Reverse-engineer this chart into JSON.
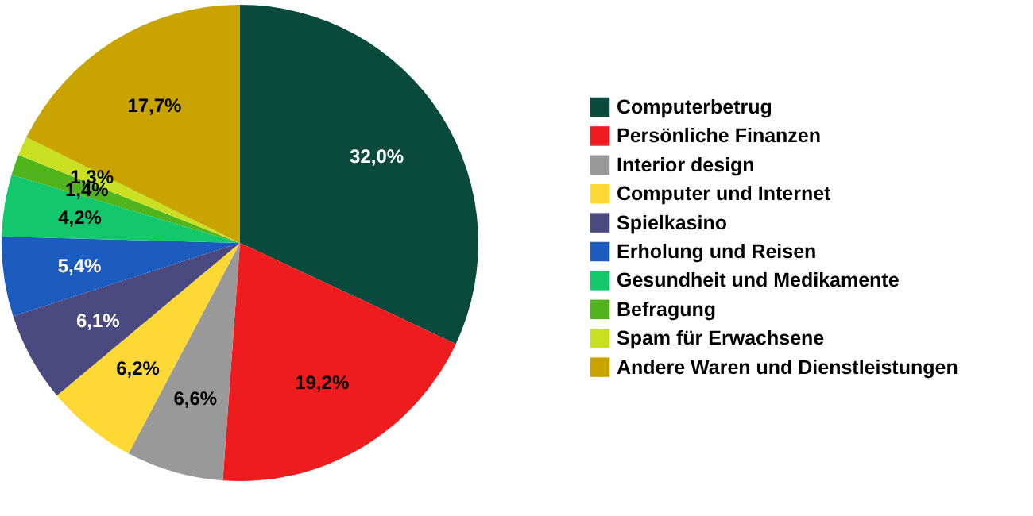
{
  "chart_data": {
    "type": "pie",
    "categories": [
      "Computerbetrug",
      "Persönliche Finanzen",
      "Interior design",
      "Computer und Internet",
      "Spielkasino",
      "Erholung und Reisen",
      "Gesundheit und Medikamente",
      "Befragung",
      "Spam für Erwachsene",
      "Andere Waren und Dienstleistungen"
    ],
    "values": [
      32.0,
      19.2,
      6.6,
      6.2,
      6.1,
      5.4,
      4.2,
      1.4,
      1.3,
      17.7
    ],
    "value_labels": [
      "32,0%",
      "19,2%",
      "6,6%",
      "6,2%",
      "6,1%",
      "5,4%",
      "4,2%",
      "1,4%",
      "1,3%",
      "17,7%"
    ],
    "colors": [
      "#0a4a3c",
      "#ee1c1e",
      "#999999",
      "#fed834",
      "#4a4a80",
      "#1c5cbf",
      "#12c76c",
      "#50b41c",
      "#c8e021",
      "#c9a400"
    ],
    "legend": "right"
  }
}
